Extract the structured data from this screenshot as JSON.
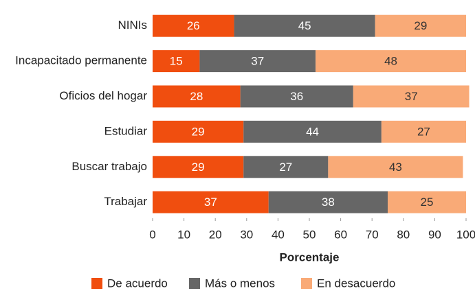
{
  "chart_data": {
    "type": "stacked_barh",
    "xlabel": "Porcentaje",
    "categories": [
      "NINIs",
      "Incapacitado permanente",
      "Oficios del hogar",
      "Estudiar",
      "Buscar trabajo",
      "Trabajar"
    ],
    "series": [
      {
        "name": "De acuerdo",
        "color": "#f04e0f",
        "values": [
          26,
          15,
          28,
          29,
          29,
          37
        ]
      },
      {
        "name": "Más o menos",
        "color": "#666666",
        "values": [
          45,
          37,
          36,
          44,
          27,
          38
        ]
      },
      {
        "name": "En desacuerdo",
        "color": "#f9aa77",
        "values": [
          29,
          48,
          37,
          27,
          43,
          25
        ]
      }
    ],
    "xlim": [
      0,
      100
    ],
    "xticks": [
      0,
      10,
      20,
      30,
      40,
      50,
      60,
      70,
      80,
      90,
      100
    ],
    "grid": false,
    "legend": "bottom"
  }
}
